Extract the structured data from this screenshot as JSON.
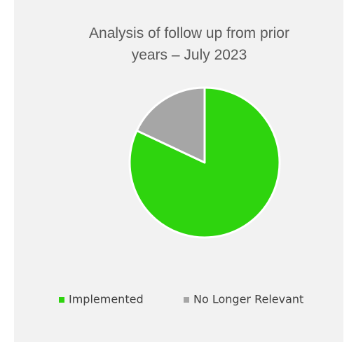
{
  "chart_data": {
    "type": "pie",
    "title": "Analysis of follow up from prior years – July 2023",
    "categories": [
      "Implemented",
      "No Longer Relevant"
    ],
    "values": [
      82,
      18
    ],
    "colors": [
      "#2ed40e",
      "#a6a6a6"
    ],
    "legend": "bottom"
  }
}
